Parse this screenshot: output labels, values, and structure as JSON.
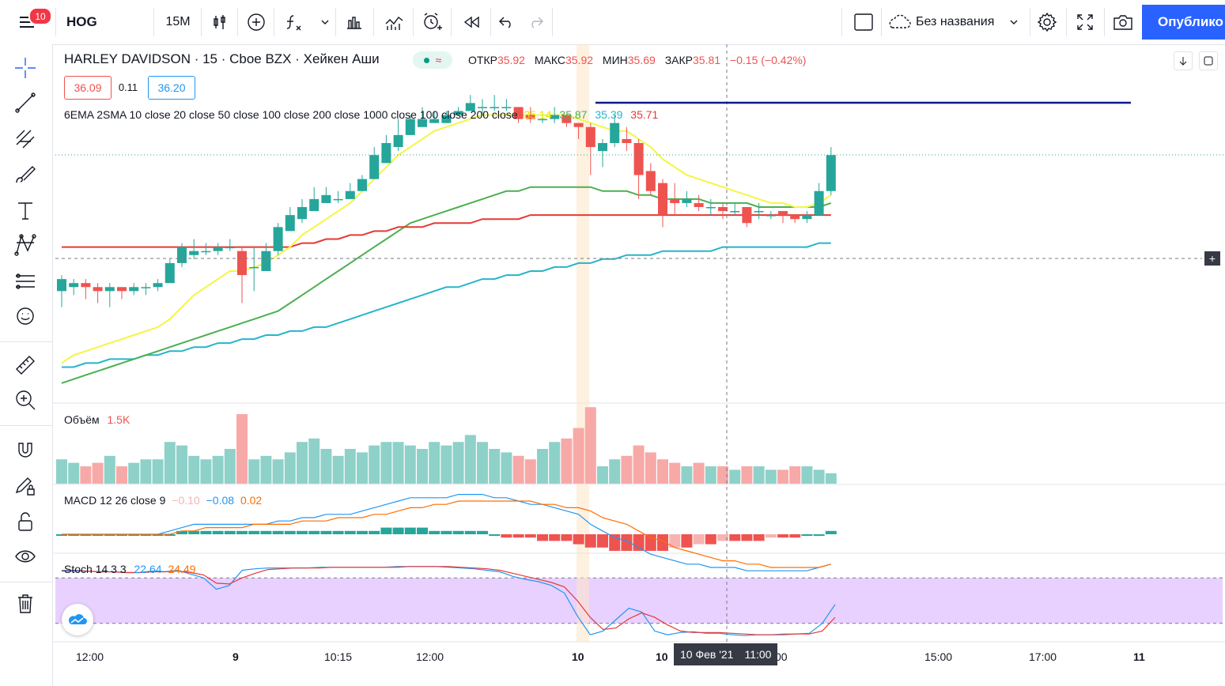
{
  "toolbar": {
    "symbol": "HOG",
    "interval": "15M",
    "layout_name": "Без названия",
    "publish_label": "Опублико",
    "notification_count": "10"
  },
  "legend": {
    "title": "HARLEY DAVIDSON · 15 · Cboe BZX · Хейкен Аши",
    "open_label": "ОТКР",
    "open": "35.92",
    "high_label": "МАКС",
    "high": "35.92",
    "low_label": "МИН",
    "low": "35.69",
    "close_label": "ЗАКР",
    "close": "35.81",
    "change": "−0.15 (−0.42%)",
    "bid": "36.09",
    "spread": "0.11",
    "ask": "36.20",
    "ma_label": "6EMA 2SMA 10 close 20 close 50 close 100 close 200 close 1000 close 100 close 200 close",
    "ma_values": [
      "35.14",
      "35.87",
      "35.39",
      "35.71"
    ]
  },
  "volume": {
    "label": "Объём",
    "value": "1.5K"
  },
  "macd": {
    "label": "MACD 12 26 close 9",
    "values": [
      "−0.10",
      "−0.08",
      "0.02"
    ]
  },
  "stoch": {
    "label": "Stoch 14 3 3",
    "values": [
      "22.64",
      "24.49"
    ]
  },
  "xaxis": {
    "ticks": [
      "12:00",
      "9",
      "10:15",
      "12:00",
      "10",
      "10",
      "00",
      "15:00",
      "17:00",
      "11"
    ],
    "crosshair_date": "10 Фев '21",
    "crosshair_time": "11:00"
  },
  "colors": {
    "up": "#26a69a",
    "down": "#ef5350",
    "ema_yellow": "#f5f542",
    "ma_green": "#4caf50",
    "ma_red": "#e53935",
    "ma_teal": "#26b5c9",
    "macd_line": "#2196f3",
    "signal_line": "#ff6d00",
    "stoch_band": "#e6ccff",
    "accent": "#2962ff"
  },
  "chart_data": {
    "type": "candlestick",
    "candles": [
      {
        "o": 35.47,
        "c": 35.5,
        "h": 35.51,
        "l": 35.43
      },
      {
        "o": 35.48,
        "c": 35.49,
        "h": 35.5,
        "l": 35.46
      },
      {
        "o": 35.49,
        "c": 35.48,
        "h": 35.5,
        "l": 35.45
      },
      {
        "o": 35.48,
        "c": 35.47,
        "h": 35.49,
        "l": 35.44
      },
      {
        "o": 35.47,
        "c": 35.48,
        "h": 35.49,
        "l": 35.43
      },
      {
        "o": 35.48,
        "c": 35.47,
        "h": 35.48,
        "l": 35.45
      },
      {
        "o": 35.47,
        "c": 35.48,
        "h": 35.49,
        "l": 35.46
      },
      {
        "o": 35.48,
        "c": 35.48,
        "h": 35.49,
        "l": 35.46
      },
      {
        "o": 35.48,
        "c": 35.49,
        "h": 35.5,
        "l": 35.47
      },
      {
        "o": 35.49,
        "c": 35.54,
        "h": 35.55,
        "l": 35.49
      },
      {
        "o": 35.54,
        "c": 35.58,
        "h": 35.59,
        "l": 35.53
      },
      {
        "o": 35.56,
        "c": 35.57,
        "h": 35.6,
        "l": 35.55
      },
      {
        "o": 35.57,
        "c": 35.57,
        "h": 35.59,
        "l": 35.56
      },
      {
        "o": 35.57,
        "c": 35.58,
        "h": 35.59,
        "l": 35.56
      },
      {
        "o": 35.58,
        "c": 35.58,
        "h": 35.6,
        "l": 35.57
      },
      {
        "o": 35.57,
        "c": 35.51,
        "h": 35.58,
        "l": 35.44
      },
      {
        "o": 35.53,
        "c": 35.53,
        "h": 35.58,
        "l": 35.47
      },
      {
        "o": 35.52,
        "c": 35.57,
        "h": 35.59,
        "l": 35.52
      },
      {
        "o": 35.57,
        "c": 35.63,
        "h": 35.64,
        "l": 35.56
      },
      {
        "o": 35.62,
        "c": 35.66,
        "h": 35.68,
        "l": 35.62
      },
      {
        "o": 35.65,
        "c": 35.68,
        "h": 35.7,
        "l": 35.64
      },
      {
        "o": 35.67,
        "c": 35.7,
        "h": 35.73,
        "l": 35.67
      },
      {
        "o": 35.69,
        "c": 35.71,
        "h": 35.73,
        "l": 35.69
      },
      {
        "o": 35.7,
        "c": 35.7,
        "h": 35.72,
        "l": 35.69
      },
      {
        "o": 35.7,
        "c": 35.72,
        "h": 35.74,
        "l": 35.7
      },
      {
        "o": 35.72,
        "c": 35.75,
        "h": 35.76,
        "l": 35.72
      },
      {
        "o": 35.75,
        "c": 35.81,
        "h": 35.83,
        "l": 35.75
      },
      {
        "o": 35.79,
        "c": 35.84,
        "h": 35.86,
        "l": 35.79
      },
      {
        "o": 35.83,
        "c": 35.86,
        "h": 35.9,
        "l": 35.82
      },
      {
        "o": 35.86,
        "c": 35.9,
        "h": 35.91,
        "l": 35.86
      },
      {
        "o": 35.88,
        "c": 35.9,
        "h": 35.93,
        "l": 35.88
      },
      {
        "o": 35.89,
        "c": 35.9,
        "h": 35.92,
        "l": 35.89
      },
      {
        "o": 35.89,
        "c": 35.91,
        "h": 35.92,
        "l": 35.89
      },
      {
        "o": 35.91,
        "c": 35.92,
        "h": 35.93,
        "l": 35.91
      },
      {
        "o": 35.92,
        "c": 35.94,
        "h": 35.96,
        "l": 35.92
      },
      {
        "o": 35.93,
        "c": 35.93,
        "h": 35.95,
        "l": 35.91
      },
      {
        "o": 35.93,
        "c": 35.93,
        "h": 35.96,
        "l": 35.92
      },
      {
        "o": 35.93,
        "c": 35.93,
        "h": 35.95,
        "l": 35.92
      },
      {
        "o": 35.93,
        "c": 35.9,
        "h": 35.93,
        "l": 35.89
      },
      {
        "o": 35.91,
        "c": 35.9,
        "h": 35.93,
        "l": 35.89
      },
      {
        "o": 35.9,
        "c": 35.9,
        "h": 35.92,
        "l": 35.89
      },
      {
        "o": 35.9,
        "c": 35.91,
        "h": 35.93,
        "l": 35.89
      },
      {
        "o": 35.91,
        "c": 35.89,
        "h": 35.91,
        "l": 35.88
      },
      {
        "o": 35.89,
        "c": 35.88,
        "h": 35.89,
        "l": 35.85
      },
      {
        "o": 35.88,
        "c": 35.83,
        "h": 35.89,
        "l": 35.76
      },
      {
        "o": 35.82,
        "c": 35.84,
        "h": 35.85,
        "l": 35.78
      },
      {
        "o": 35.84,
        "c": 35.89,
        "h": 35.91,
        "l": 35.83
      },
      {
        "o": 35.85,
        "c": 35.84,
        "h": 35.88,
        "l": 35.82
      },
      {
        "o": 35.84,
        "c": 35.76,
        "h": 35.85,
        "l": 35.7
      },
      {
        "o": 35.77,
        "c": 35.72,
        "h": 35.79,
        "l": 35.71
      },
      {
        "o": 35.74,
        "c": 35.66,
        "h": 35.75,
        "l": 35.63
      },
      {
        "o": 35.7,
        "c": 35.69,
        "h": 35.74,
        "l": 35.66
      },
      {
        "o": 35.69,
        "c": 35.7,
        "h": 35.72,
        "l": 35.68
      },
      {
        "o": 35.69,
        "c": 35.68,
        "h": 35.71,
        "l": 35.67
      },
      {
        "o": 35.68,
        "c": 35.68,
        "h": 35.7,
        "l": 35.66
      },
      {
        "o": 35.68,
        "c": 35.67,
        "h": 35.69,
        "l": 35.65
      },
      {
        "o": 35.67,
        "c": 35.67,
        "h": 35.69,
        "l": 35.66
      },
      {
        "o": 35.68,
        "c": 35.64,
        "h": 35.68,
        "l": 35.63
      },
      {
        "o": 35.67,
        "c": 35.67,
        "h": 35.69,
        "l": 35.65
      },
      {
        "o": 35.66,
        "c": 35.66,
        "h": 35.67,
        "l": 35.65
      },
      {
        "o": 35.67,
        "c": 35.66,
        "h": 35.67,
        "l": 35.64
      },
      {
        "o": 35.66,
        "c": 35.65,
        "h": 35.66,
        "l": 35.64
      },
      {
        "o": 35.65,
        "c": 35.66,
        "h": 35.67,
        "l": 35.64
      },
      {
        "o": 35.66,
        "c": 35.72,
        "h": 35.74,
        "l": 35.66
      },
      {
        "o": 35.72,
        "c": 35.81,
        "h": 35.83,
        "l": 35.71
      }
    ],
    "volume": [
      14,
      12,
      10,
      12,
      16,
      10,
      12,
      14,
      14,
      24,
      22,
      16,
      14,
      16,
      20,
      40,
      14,
      16,
      14,
      18,
      24,
      26,
      20,
      16,
      20,
      18,
      22,
      24,
      24,
      22,
      20,
      24,
      22,
      24,
      28,
      24,
      20,
      18,
      16,
      14,
      20,
      24,
      26,
      32,
      44,
      10,
      14,
      16,
      22,
      18,
      14,
      12,
      10,
      12,
      10,
      10,
      8,
      10,
      10,
      8,
      8,
      10,
      10,
      8,
      6
    ],
    "ema_yellow": [
      35.29,
      35.31,
      35.32,
      35.33,
      35.34,
      35.35,
      35.36,
      35.37,
      35.38,
      35.4,
      35.43,
      35.46,
      35.48,
      35.5,
      35.52,
      35.52,
      35.53,
      35.54,
      35.56,
      35.58,
      35.61,
      35.63,
      35.65,
      35.67,
      35.69,
      35.72,
      35.75,
      35.78,
      35.81,
      35.83,
      35.85,
      35.87,
      35.88,
      35.89,
      35.9,
      35.91,
      35.91,
      35.91,
      35.91,
      35.91,
      35.91,
      35.91,
      35.91,
      35.9,
      35.89,
      35.88,
      35.87,
      35.87,
      35.85,
      35.83,
      35.8,
      35.78,
      35.76,
      35.75,
      35.74,
      35.73,
      35.72,
      35.71,
      35.7,
      35.69,
      35.69,
      35.68,
      35.68,
      35.69,
      35.71
    ],
    "ma_green": [
      35.24,
      35.25,
      35.26,
      35.27,
      35.28,
      35.29,
      35.3,
      35.31,
      35.32,
      35.33,
      35.34,
      35.35,
      35.36,
      35.37,
      35.38,
      35.39,
      35.4,
      35.41,
      35.42,
      35.44,
      35.46,
      35.48,
      35.5,
      35.52,
      35.54,
      35.56,
      35.58,
      35.6,
      35.62,
      35.64,
      35.65,
      35.66,
      35.67,
      35.68,
      35.69,
      35.7,
      35.71,
      35.72,
      35.72,
      35.73,
      35.73,
      35.73,
      35.73,
      35.73,
      35.73,
      35.72,
      35.72,
      35.72,
      35.71,
      35.71,
      35.7,
      35.7,
      35.7,
      35.7,
      35.69,
      35.69,
      35.69,
      35.69,
      35.68,
      35.68,
      35.68,
      35.68,
      35.68,
      35.68,
      35.69
    ],
    "ma_red": [
      35.58,
      35.58,
      35.58,
      35.58,
      35.58,
      35.58,
      35.58,
      35.58,
      35.58,
      35.58,
      35.58,
      35.58,
      35.58,
      35.58,
      35.58,
      35.58,
      35.58,
      35.58,
      35.58,
      35.58,
      35.59,
      35.59,
      35.6,
      35.6,
      35.61,
      35.61,
      35.62,
      35.62,
      35.63,
      35.63,
      35.63,
      35.64,
      35.64,
      35.64,
      35.64,
      35.65,
      35.65,
      35.65,
      35.65,
      35.66,
      35.66,
      35.66,
      35.66,
      35.66,
      35.66,
      35.66,
      35.66,
      35.66,
      35.66,
      35.66,
      35.66,
      35.66,
      35.66,
      35.66,
      35.66,
      35.66,
      35.66,
      35.66,
      35.66,
      35.66,
      35.66,
      35.66,
      35.66,
      35.66,
      35.66
    ],
    "ma_teal": [
      35.28,
      35.28,
      35.29,
      35.29,
      35.3,
      35.3,
      35.3,
      35.31,
      35.31,
      35.32,
      35.32,
      35.33,
      35.33,
      35.34,
      35.34,
      35.35,
      35.35,
      35.36,
      35.36,
      35.37,
      35.37,
      35.38,
      35.38,
      35.39,
      35.4,
      35.41,
      35.42,
      35.43,
      35.44,
      35.45,
      35.46,
      35.47,
      35.48,
      35.48,
      35.49,
      35.5,
      35.5,
      35.51,
      35.51,
      35.52,
      35.52,
      35.53,
      35.53,
      35.54,
      35.54,
      35.55,
      35.55,
      35.56,
      35.56,
      35.56,
      35.57,
      35.57,
      35.57,
      35.57,
      35.57,
      35.58,
      35.58,
      35.58,
      35.58,
      35.58,
      35.58,
      35.58,
      35.58,
      35.59,
      35.59
    ],
    "macd_line": [
      0.0,
      0.0,
      0.0,
      0.0,
      0.0,
      0.0,
      0.0,
      0.0,
      0.0,
      0.01,
      0.02,
      0.03,
      0.03,
      0.03,
      0.03,
      0.03,
      0.03,
      0.03,
      0.04,
      0.04,
      0.05,
      0.05,
      0.06,
      0.06,
      0.06,
      0.07,
      0.08,
      0.09,
      0.1,
      0.11,
      0.11,
      0.11,
      0.11,
      0.12,
      0.12,
      0.12,
      0.11,
      0.11,
      0.1,
      0.09,
      0.09,
      0.08,
      0.07,
      0.06,
      0.03,
      0.01,
      -0.01,
      -0.02,
      -0.04,
      -0.06,
      -0.07,
      -0.08,
      -0.09,
      -0.09,
      -0.1,
      -0.1,
      -0.1,
      -0.11,
      -0.11,
      -0.11,
      -0.11,
      -0.11,
      -0.11,
      -0.1,
      -0.09
    ],
    "signal_line": [
      0.0,
      0.0,
      0.0,
      0.0,
      0.0,
      0.0,
      0.0,
      0.0,
      0.0,
      0.0,
      0.01,
      0.01,
      0.02,
      0.02,
      0.02,
      0.02,
      0.03,
      0.03,
      0.03,
      0.03,
      0.04,
      0.04,
      0.04,
      0.05,
      0.05,
      0.05,
      0.06,
      0.06,
      0.07,
      0.08,
      0.08,
      0.09,
      0.09,
      0.1,
      0.1,
      0.1,
      0.1,
      0.1,
      0.1,
      0.1,
      0.09,
      0.09,
      0.08,
      0.08,
      0.07,
      0.05,
      0.04,
      0.03,
      0.01,
      -0.01,
      -0.02,
      -0.04,
      -0.05,
      -0.06,
      -0.07,
      -0.08,
      -0.08,
      -0.09,
      -0.09,
      -0.1,
      -0.1,
      -0.1,
      -0.1,
      -0.1,
      -0.09
    ],
    "macd_hist": [
      0.0,
      0.0,
      0.0,
      0.0,
      0.0,
      0.0,
      0.0,
      0.0,
      0.0,
      0.0,
      0.01,
      0.01,
      0.01,
      0.01,
      0.01,
      0.01,
      0.01,
      0.01,
      0.01,
      0.01,
      0.01,
      0.01,
      0.01,
      0.01,
      0.01,
      0.01,
      0.01,
      0.02,
      0.02,
      0.02,
      0.02,
      0.01,
      0.01,
      0.01,
      0.01,
      0.01,
      0.0,
      -0.01,
      -0.01,
      -0.01,
      -0.02,
      -0.02,
      -0.02,
      -0.03,
      -0.04,
      -0.04,
      -0.05,
      -0.05,
      -0.05,
      -0.05,
      -0.05,
      -0.04,
      -0.04,
      -0.03,
      -0.03,
      -0.02,
      -0.02,
      -0.02,
      -0.02,
      -0.01,
      -0.01,
      -0.01,
      0.0,
      0.0,
      0.01
    ],
    "stoch_k": [
      90,
      90,
      89,
      88,
      88,
      87,
      87,
      89,
      88,
      90,
      85,
      80,
      65,
      70,
      90,
      92,
      93,
      93,
      93,
      93,
      94,
      94,
      94,
      94,
      94,
      94,
      95,
      95,
      95,
      95,
      94,
      93,
      92,
      90,
      88,
      82,
      78,
      75,
      70,
      60,
      30,
      5,
      10,
      25,
      40,
      35,
      10,
      5,
      8,
      9,
      7,
      7,
      5,
      4,
      5,
      5,
      6,
      6,
      7,
      20,
      45
    ],
    "stoch_d": [
      89,
      89,
      89,
      88,
      88,
      87,
      87,
      88,
      88,
      89,
      87,
      84,
      73,
      72,
      80,
      86,
      91,
      92,
      93,
      93,
      93,
      94,
      94,
      94,
      94,
      94,
      94,
      95,
      95,
      95,
      95,
      94,
      93,
      92,
      90,
      86,
      82,
      78,
      74,
      68,
      50,
      28,
      12,
      14,
      26,
      34,
      28,
      18,
      10,
      8,
      8,
      8,
      7,
      6,
      5,
      5,
      5,
      6,
      6,
      10,
      28
    ]
  }
}
